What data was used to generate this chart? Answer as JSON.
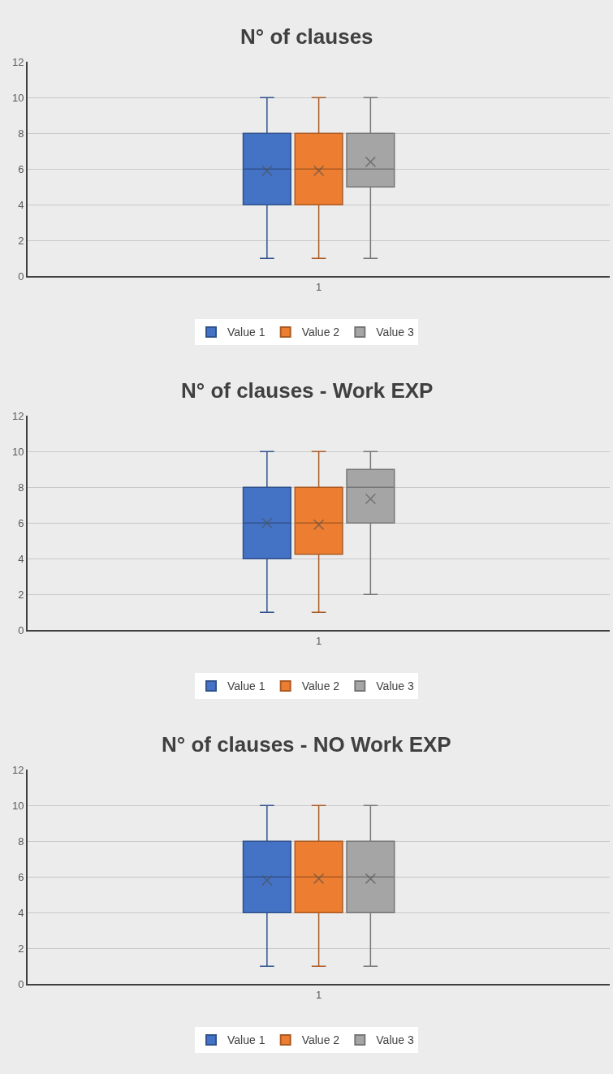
{
  "chart_data": [
    {
      "type": "box",
      "title": "N° of clauses",
      "categories": [
        "1"
      ],
      "ylim": [
        0,
        12
      ],
      "yticks": [
        0,
        2,
        4,
        6,
        8,
        10,
        12
      ],
      "grid": "y",
      "legend": "bottom",
      "series": [
        {
          "name": "Value 1",
          "color": "#4472c4",
          "boxes": [
            {
              "low": 1,
              "q1": 4,
              "median": 6,
              "q3": 8,
              "high": 10,
              "mean": 5.9
            }
          ]
        },
        {
          "name": "Value 2",
          "color": "#ed7d31",
          "boxes": [
            {
              "low": 1,
              "q1": 4,
              "median": 6,
              "q3": 8,
              "high": 10,
              "mean": 5.9
            }
          ]
        },
        {
          "name": "Value 3",
          "color": "#a5a5a5",
          "boxes": [
            {
              "low": 1,
              "q1": 5,
              "median": 6,
              "q3": 8,
              "high": 10,
              "mean": 6.4
            }
          ]
        }
      ]
    },
    {
      "type": "box",
      "title": "N° of clauses - Work EXP",
      "categories": [
        "1"
      ],
      "ylim": [
        0,
        12
      ],
      "yticks": [
        0,
        2,
        4,
        6,
        8,
        10,
        12
      ],
      "grid": "y",
      "legend": "bottom",
      "series": [
        {
          "name": "Value 1",
          "color": "#4472c4",
          "boxes": [
            {
              "low": 1,
              "q1": 4,
              "median": 6,
              "q3": 8,
              "high": 10,
              "mean": 6.0
            }
          ]
        },
        {
          "name": "Value 2",
          "color": "#ed7d31",
          "boxes": [
            {
              "low": 1,
              "q1": 4.25,
              "median": 6,
              "q3": 8,
              "high": 10,
              "mean": 5.9
            }
          ]
        },
        {
          "name": "Value 3",
          "color": "#a5a5a5",
          "boxes": [
            {
              "low": 2,
              "q1": 6,
              "median": 8,
              "q3": 9,
              "high": 10,
              "mean": 7.35
            }
          ]
        }
      ]
    },
    {
      "type": "box",
      "title": "N° of clauses - NO Work EXP",
      "categories": [
        "1"
      ],
      "ylim": [
        0,
        12
      ],
      "yticks": [
        0,
        2,
        4,
        6,
        8,
        10,
        12
      ],
      "grid": "y",
      "legend": "bottom",
      "series": [
        {
          "name": "Value 1",
          "color": "#4472c4",
          "boxes": [
            {
              "low": 1,
              "q1": 4,
              "median": 6,
              "q3": 8,
              "high": 10,
              "mean": 5.8
            }
          ]
        },
        {
          "name": "Value 2",
          "color": "#ed7d31",
          "boxes": [
            {
              "low": 1,
              "q1": 4,
              "median": 6,
              "q3": 8,
              "high": 10,
              "mean": 5.9
            }
          ]
        },
        {
          "name": "Value 3",
          "color": "#a5a5a5",
          "boxes": [
            {
              "low": 1,
              "q1": 4,
              "median": 6,
              "q3": 8,
              "high": 10,
              "mean": 5.9
            }
          ]
        }
      ]
    }
  ]
}
